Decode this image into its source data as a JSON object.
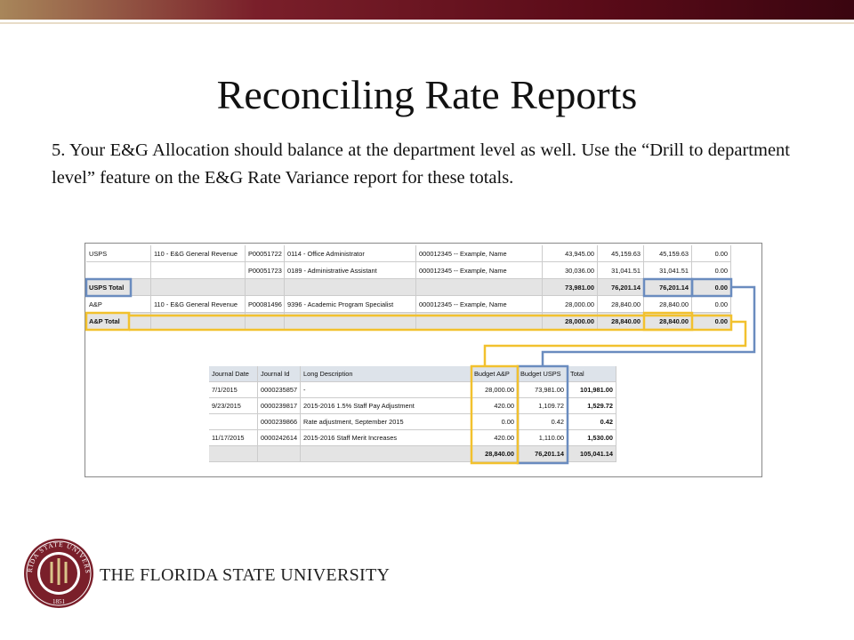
{
  "header": {
    "title": "Reconciling Rate Reports"
  },
  "body": {
    "text": "5. Your E&G Allocation should balance at the department level as well. Use the “Drill to department level” feature on the E&G Rate Variance report for these totals."
  },
  "table_top": {
    "rows": [
      [
        "USPS",
        "110 - E&G General Revenue",
        "P00051722",
        "0114 - Office Administrator",
        "000012345 -- Example, Name",
        "43,945.00",
        "45,159.63",
        "45,159.63",
        "0.00"
      ],
      [
        null,
        null,
        "P00051723",
        "0189 - Administrative Assistant",
        "000012345 -- Example, Name",
        "30,036.00",
        "31,041.51",
        "31,041.51",
        "0.00"
      ],
      [
        "USPS Total",
        null,
        null,
        null,
        null,
        "73,981.00",
        "76,201.14",
        "76,201.14",
        "0.00"
      ],
      [
        "A&P",
        "110 - E&G General Revenue",
        "P00081496",
        "9396 - Academic Program Specialist",
        "000012345 -- Example, Name",
        "28,000.00",
        "28,840.00",
        "28,840.00",
        "0.00"
      ],
      [
        "A&P Total",
        null,
        null,
        null,
        null,
        "28,000.00",
        "28,840.00",
        "28,840.00",
        "0.00"
      ]
    ]
  },
  "table_journal": {
    "header": [
      "Journal Date",
      "Journal Id",
      "Long Description",
      "Budget A&P",
      "Budget USPS",
      "Total"
    ],
    "rows": [
      [
        "7/1/2015",
        "0000235857",
        "-",
        "28,000.00",
        "73,981.00",
        "101,981.00"
      ],
      [
        "9/23/2015",
        "0000239817",
        "2015-2016 1.5% Staff Pay Adjustment",
        "420.00",
        "1,109.72",
        "1,529.72"
      ],
      [
        null,
        "0000239866",
        "Rate adjustment, September 2015",
        "0.00",
        "0.42",
        "0.42"
      ],
      [
        "11/17/2015",
        "0000242614",
        "2015-2016 Staff Merit Increases",
        "420.00",
        "1,110.00",
        "1,530.00"
      ],
      [
        null,
        null,
        null,
        "28,840.00",
        "76,201.14",
        "105,041.14"
      ]
    ]
  },
  "footer": {
    "university": "THE FLORIDA STATE UNIVERSITY",
    "seal_name": "FLORIDA STATE UNIVERSITY",
    "seal_year": "1851"
  }
}
